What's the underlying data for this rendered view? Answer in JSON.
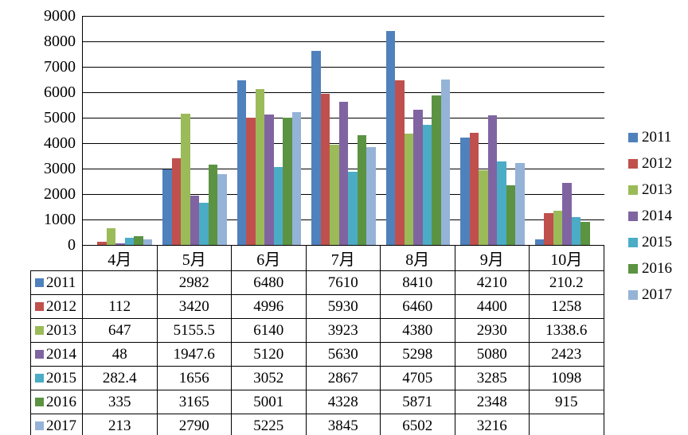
{
  "chart": {
    "background": "#ffffff",
    "axis_color": "#000000",
    "gridline_color": "#000000",
    "text_color": "#000000"
  },
  "chart_data": {
    "type": "bar",
    "title": "",
    "xlabel": "",
    "ylabel": "",
    "categories": [
      "4月",
      "5月",
      "6月",
      "7月",
      "8月",
      "9月",
      "10月"
    ],
    "series": [
      {
        "name": "2011",
        "color": "#4F81BD",
        "values": [
          null,
          2982,
          6480,
          7610,
          8410,
          4210,
          210.2
        ]
      },
      {
        "name": "2012",
        "color": "#C0504D",
        "values": [
          112,
          3420,
          4996,
          5930,
          6460,
          4400,
          1258
        ]
      },
      {
        "name": "2013",
        "color": "#9BBB59",
        "values": [
          647,
          5155.5,
          6140,
          3923,
          4380,
          2930,
          1338.6
        ]
      },
      {
        "name": "2014",
        "color": "#8064A2",
        "values": [
          48,
          1947.6,
          5120,
          5630,
          5298,
          5080,
          2423
        ]
      },
      {
        "name": "2015",
        "color": "#4BACC6",
        "values": [
          282.4,
          1656,
          3052,
          2867,
          4705,
          3285,
          1098
        ]
      },
      {
        "name": "2016",
        "color": "#5B9342",
        "values": [
          335,
          3165,
          5001,
          4328,
          5871,
          2348,
          915
        ]
      },
      {
        "name": "2017",
        "color": "#95B3D7",
        "values": [
          213,
          2790,
          5225,
          3845,
          6502,
          3216,
          null
        ]
      }
    ],
    "ylim": [
      0,
      9000
    ],
    "ytick_step": 1000,
    "yticks": [
      "0",
      "1000",
      "2000",
      "3000",
      "4000",
      "5000",
      "6000",
      "7000",
      "8000",
      "9000"
    ],
    "grid": true,
    "legend_position": "right",
    "legend_labels": [
      "2011",
      "2012",
      "2013",
      "2014",
      "2015",
      "2016",
      "2017"
    ],
    "data_table_shown": true
  }
}
